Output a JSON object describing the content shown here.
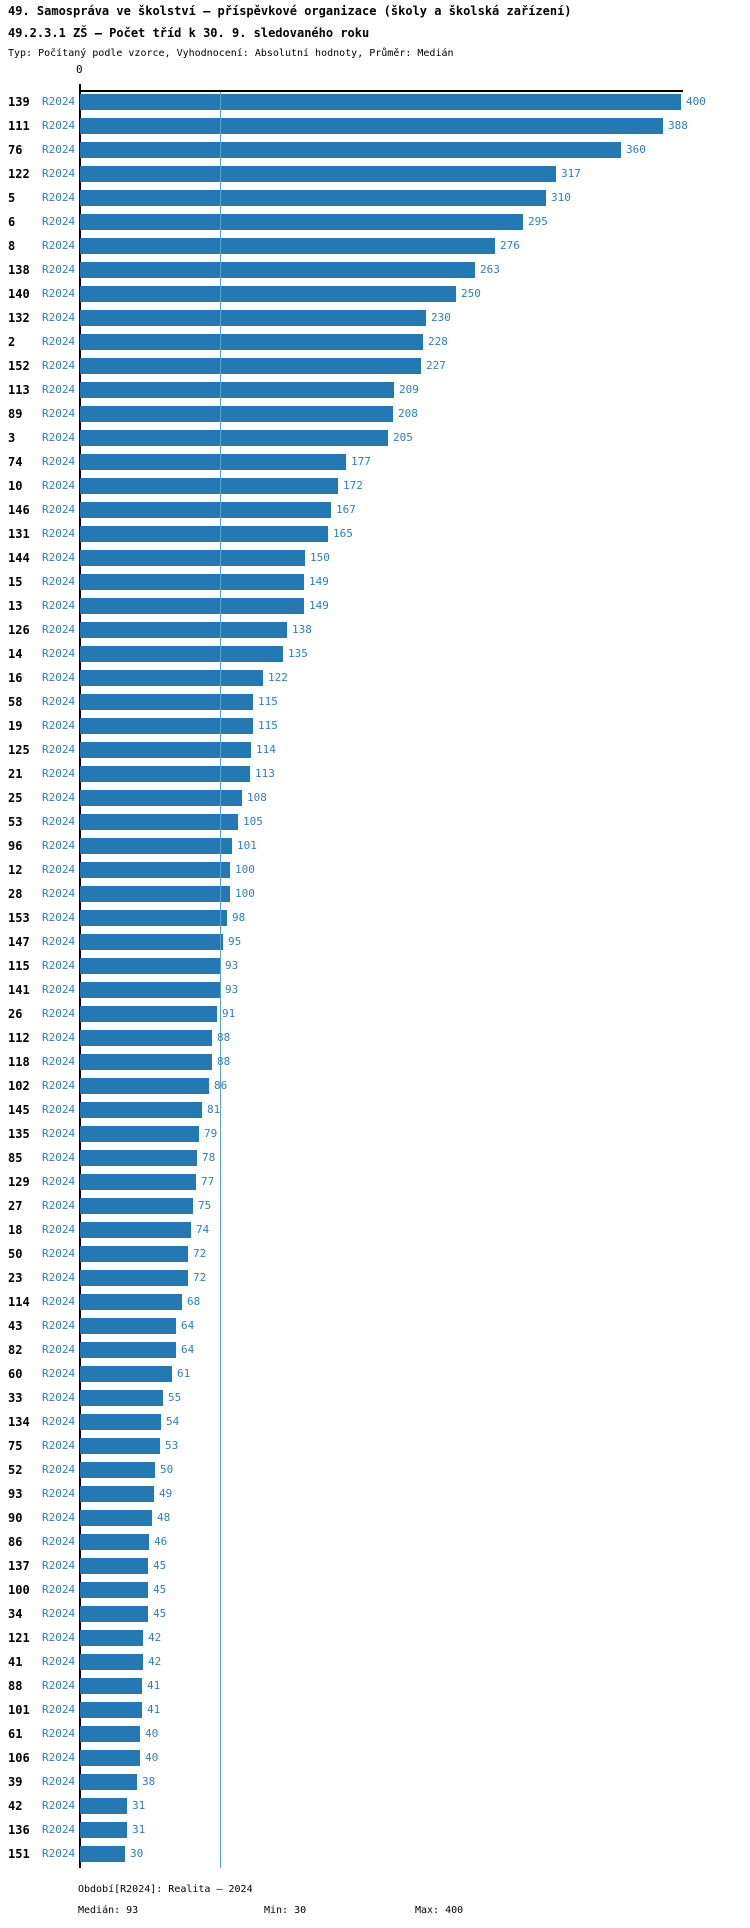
{
  "header": {
    "title": "49. Samospráva ve školství – příspěvkové organizace (školy a školská zařízení)",
    "subtitle": "49.2.3.1 ZŠ – Počet tříd k 30. 9. sledovaného roku",
    "meta": "Typ: Počítaný podle vzorce, Vyhodnocení: Absolutní hodnoty, Průměr: Medián"
  },
  "footer": {
    "period": "Období[R2024]: Realita – 2024",
    "median": "Medián: 93",
    "min": "Min: 30",
    "max": "Max: 400"
  },
  "colors": {
    "bar": "#2478b4",
    "blue_text": "#2e80b9",
    "median_line": "#5aa1cd",
    "axis": "#000000"
  },
  "chart_data": {
    "type": "bar",
    "orientation": "horizontal",
    "title": "49.2.3.1 ZŠ – Počet tříd k 30. 9. sledovaného roku",
    "series_label": "R2024",
    "x_axis": {
      "origin_label": "0",
      "min": 0,
      "max": 400,
      "grid": false
    },
    "median_value": 93,
    "min_value": 30,
    "max_value": 400,
    "legend_position": "none",
    "rows": [
      {
        "label": "139",
        "value": 400
      },
      {
        "label": "111",
        "value": 388
      },
      {
        "label": "76",
        "value": 360
      },
      {
        "label": "122",
        "value": 317
      },
      {
        "label": "5",
        "value": 310
      },
      {
        "label": "6",
        "value": 295
      },
      {
        "label": "8",
        "value": 276
      },
      {
        "label": "138",
        "value": 263
      },
      {
        "label": "140",
        "value": 250
      },
      {
        "label": "132",
        "value": 230
      },
      {
        "label": "2",
        "value": 228
      },
      {
        "label": "152",
        "value": 227
      },
      {
        "label": "113",
        "value": 209
      },
      {
        "label": "89",
        "value": 208
      },
      {
        "label": "3",
        "value": 205
      },
      {
        "label": "74",
        "value": 177
      },
      {
        "label": "10",
        "value": 172
      },
      {
        "label": "146",
        "value": 167
      },
      {
        "label": "131",
        "value": 165
      },
      {
        "label": "144",
        "value": 150
      },
      {
        "label": "15",
        "value": 149
      },
      {
        "label": "13",
        "value": 149
      },
      {
        "label": "126",
        "value": 138
      },
      {
        "label": "14",
        "value": 135
      },
      {
        "label": "16",
        "value": 122
      },
      {
        "label": "58",
        "value": 115
      },
      {
        "label": "19",
        "value": 115
      },
      {
        "label": "125",
        "value": 114
      },
      {
        "label": "21",
        "value": 113
      },
      {
        "label": "25",
        "value": 108
      },
      {
        "label": "53",
        "value": 105
      },
      {
        "label": "96",
        "value": 101
      },
      {
        "label": "12",
        "value": 100
      },
      {
        "label": "28",
        "value": 100
      },
      {
        "label": "153",
        "value": 98
      },
      {
        "label": "147",
        "value": 95
      },
      {
        "label": "115",
        "value": 93
      },
      {
        "label": "141",
        "value": 93
      },
      {
        "label": "26",
        "value": 91
      },
      {
        "label": "112",
        "value": 88
      },
      {
        "label": "118",
        "value": 88
      },
      {
        "label": "102",
        "value": 86
      },
      {
        "label": "145",
        "value": 81
      },
      {
        "label": "135",
        "value": 79
      },
      {
        "label": "85",
        "value": 78
      },
      {
        "label": "129",
        "value": 77
      },
      {
        "label": "27",
        "value": 75
      },
      {
        "label": "18",
        "value": 74
      },
      {
        "label": "50",
        "value": 72
      },
      {
        "label": "23",
        "value": 72
      },
      {
        "label": "114",
        "value": 68
      },
      {
        "label": "43",
        "value": 64
      },
      {
        "label": "82",
        "value": 64
      },
      {
        "label": "60",
        "value": 61
      },
      {
        "label": "33",
        "value": 55
      },
      {
        "label": "134",
        "value": 54
      },
      {
        "label": "75",
        "value": 53
      },
      {
        "label": "52",
        "value": 50
      },
      {
        "label": "93",
        "value": 49
      },
      {
        "label": "90",
        "value": 48
      },
      {
        "label": "86",
        "value": 46
      },
      {
        "label": "137",
        "value": 45
      },
      {
        "label": "100",
        "value": 45
      },
      {
        "label": "34",
        "value": 45
      },
      {
        "label": "121",
        "value": 42
      },
      {
        "label": "41",
        "value": 42
      },
      {
        "label": "88",
        "value": 41
      },
      {
        "label": "101",
        "value": 41
      },
      {
        "label": "61",
        "value": 40
      },
      {
        "label": "106",
        "value": 40
      },
      {
        "label": "39",
        "value": 38
      },
      {
        "label": "42",
        "value": 31
      },
      {
        "label": "136",
        "value": 31
      },
      {
        "label": "151",
        "value": 30
      }
    ]
  }
}
